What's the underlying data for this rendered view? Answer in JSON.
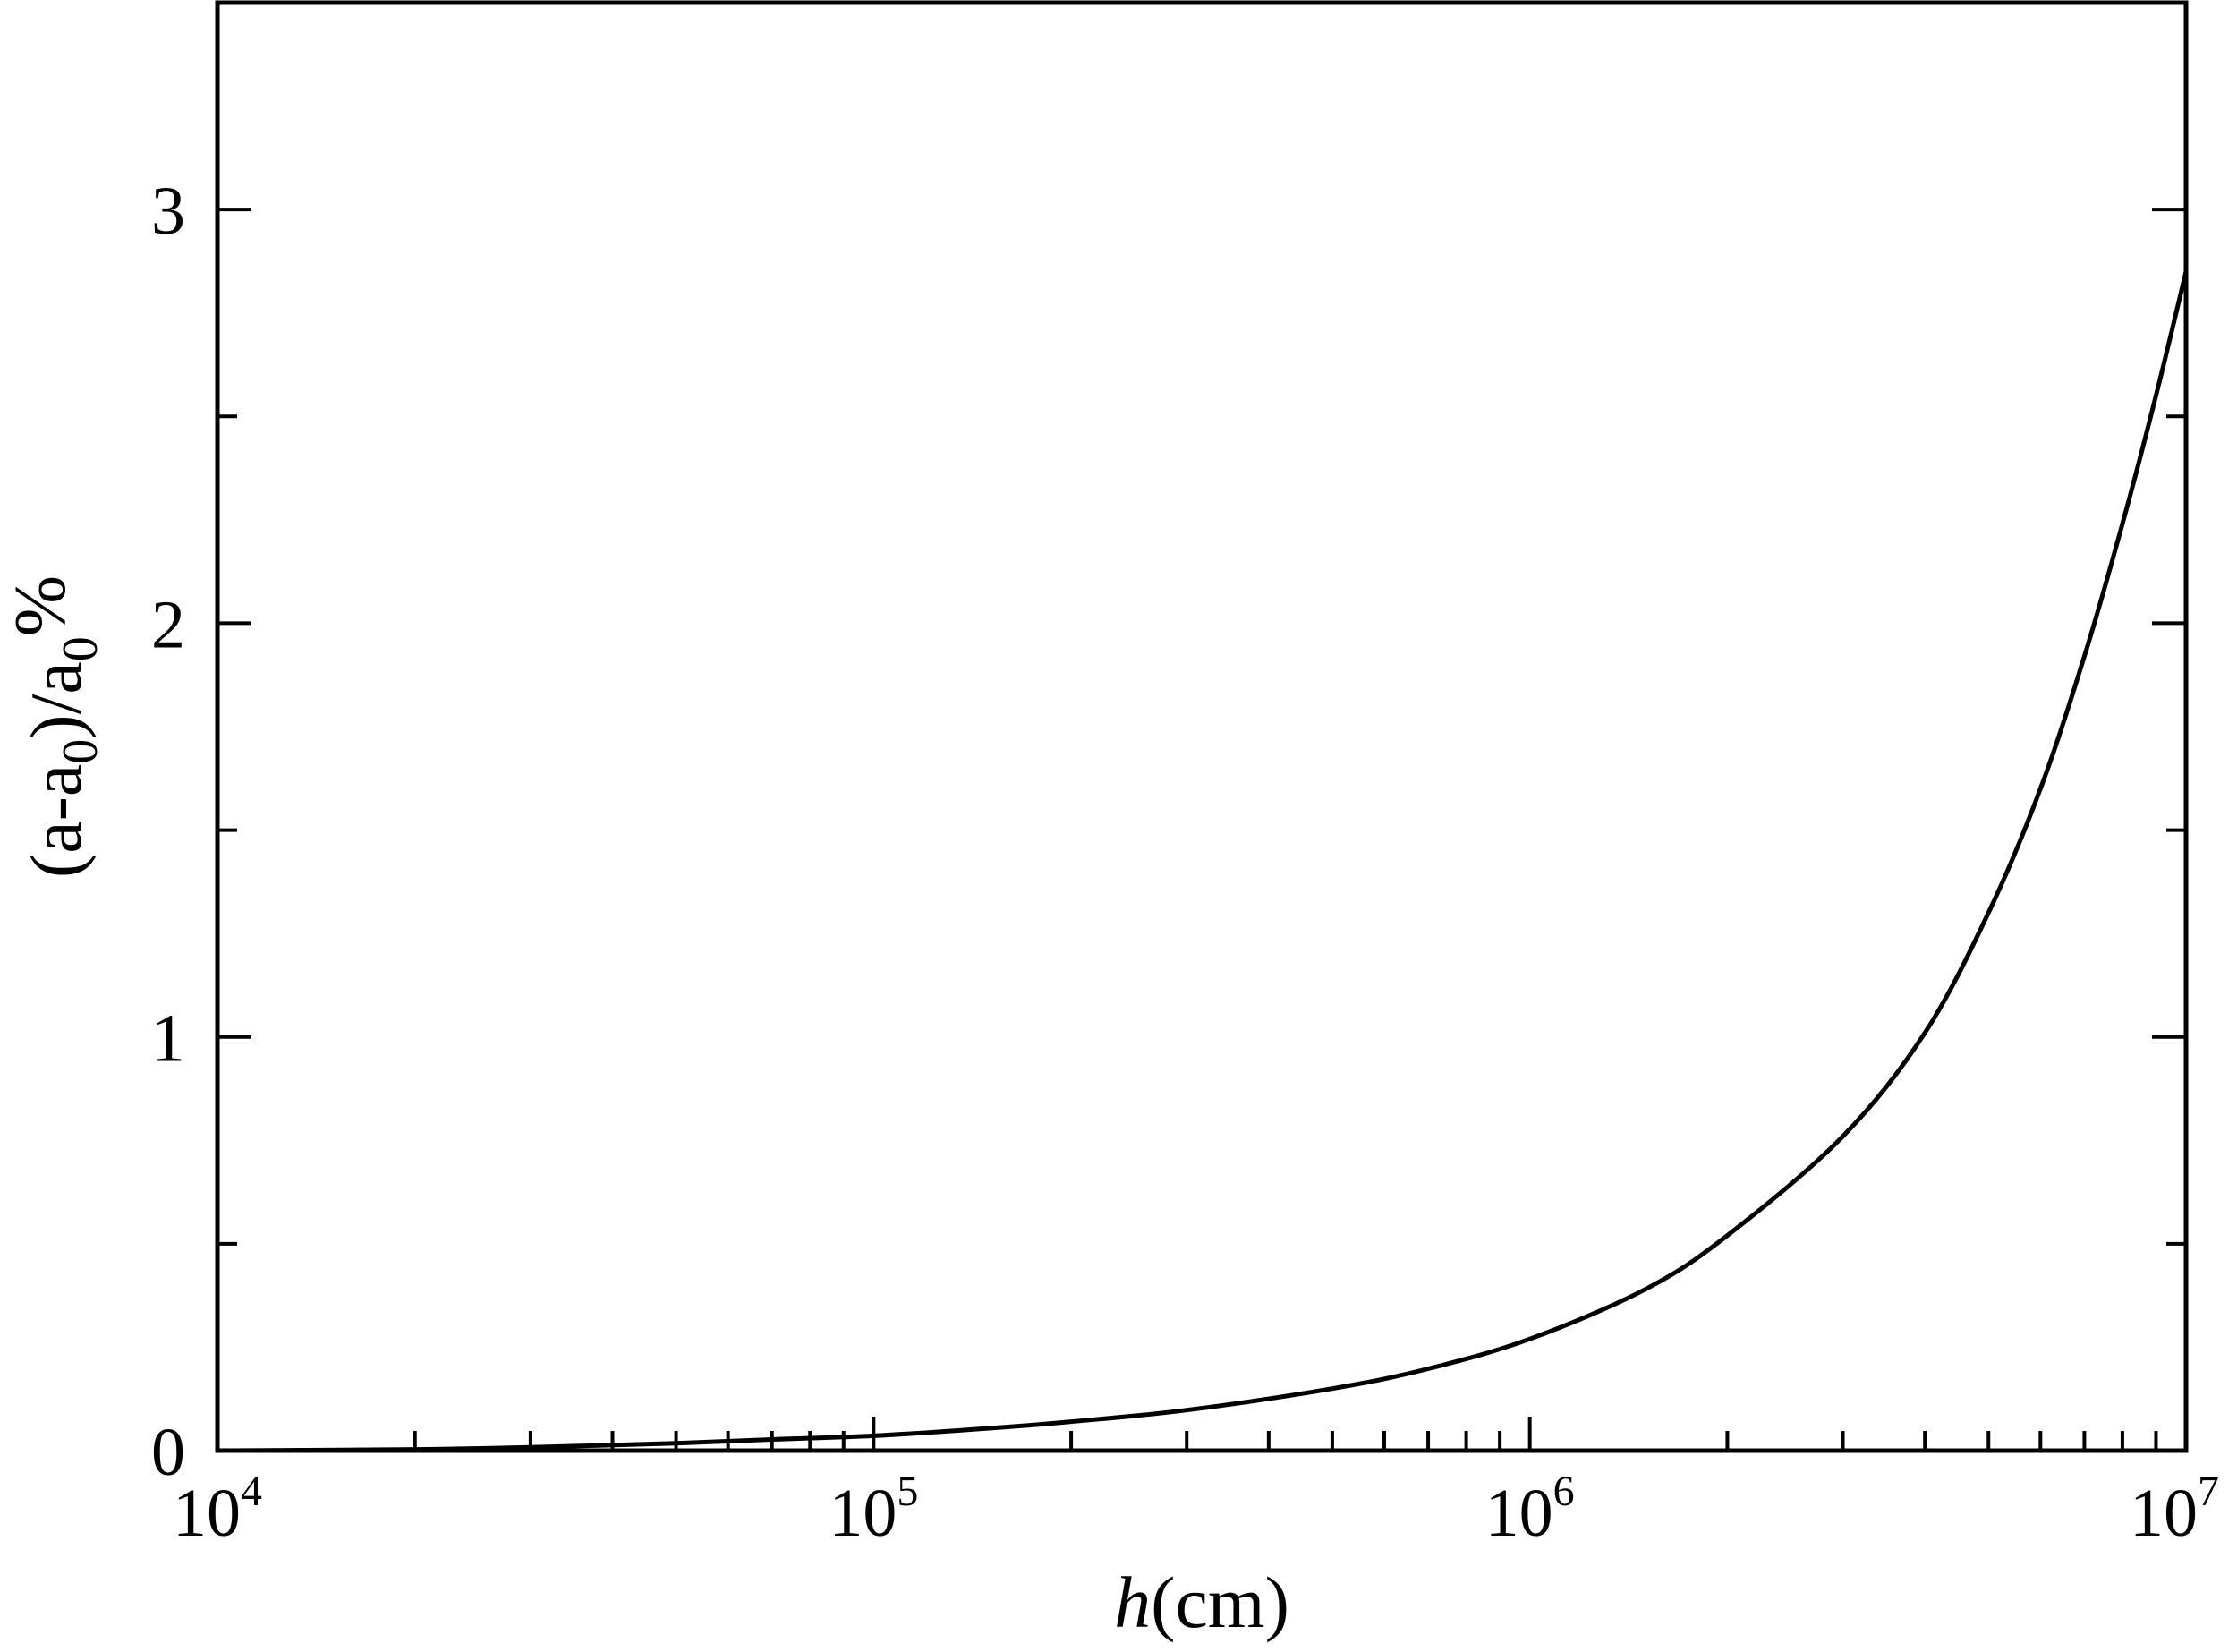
{
  "chart_data": {
    "type": "line",
    "xlabel": {
      "italic": "h",
      "rest": "(cm)"
    },
    "ylabel": {
      "p1": "(a-a",
      "sub1": "0",
      "p2": ")/a",
      "sub2": "0",
      "p3": "%"
    },
    "xscale": "log",
    "xlim": [
      10000,
      10000000
    ],
    "ylim": [
      0,
      3.5
    ],
    "x_ticks": [
      {
        "base": "10",
        "exp": "4",
        "value": 10000
      },
      {
        "base": "10",
        "exp": "5",
        "value": 100000
      },
      {
        "base": "10",
        "exp": "6",
        "value": 1000000
      },
      {
        "base": "10",
        "exp": "7",
        "value": 10000000
      }
    ],
    "y_ticks": [
      {
        "label": "0",
        "value": 0
      },
      {
        "label": "1",
        "value": 1
      },
      {
        "label": "2",
        "value": 2
      },
      {
        "label": "3",
        "value": 3
      }
    ],
    "y_minor_ticks": [
      0.5,
      1.5,
      2.5
    ],
    "grid": false,
    "series": [
      {
        "x": [
          10000,
          20000,
          30000,
          50000,
          70000,
          100000,
          150000,
          200000,
          300000,
          500000,
          700000,
          1000000,
          1500000,
          2000000,
          3000000,
          4000000,
          5000000,
          6000000,
          7000000,
          8000000,
          9000000,
          10000000
        ],
        "y": [
          0,
          0.003,
          0.008,
          0.018,
          0.027,
          0.036,
          0.054,
          0.07,
          0.098,
          0.15,
          0.198,
          0.27,
          0.39,
          0.52,
          0.76,
          1.01,
          1.3,
          1.6,
          1.92,
          2.24,
          2.55,
          2.85
        ],
        "color": "#000000"
      }
    ]
  }
}
